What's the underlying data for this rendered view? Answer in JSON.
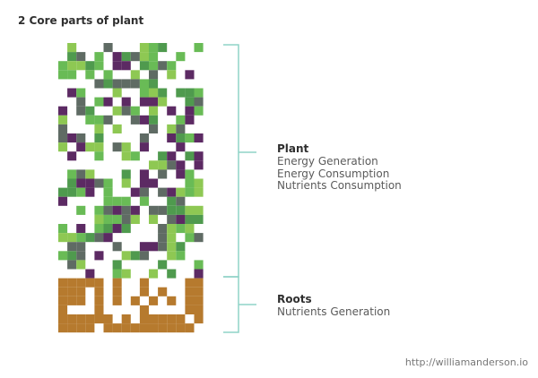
{
  "title": "2 Core parts of plant",
  "plant": {
    "heading": "Plant",
    "lines": [
      "Energy Generation",
      "Energy Consumption",
      "Nutrients Consumption"
    ]
  },
  "roots": {
    "heading": "Roots",
    "lines": [
      "Nutrients Generation"
    ]
  },
  "credit": "http://williamanderson.io",
  "colors": {
    "purple": "#5c2a63",
    "dark_green": "#4f9a4e",
    "green": "#69bb56",
    "light_green": "#8ec853",
    "gray": "#5f6b64",
    "brown": "#b67a2e",
    "bracket": "#8fd3c7"
  }
}
